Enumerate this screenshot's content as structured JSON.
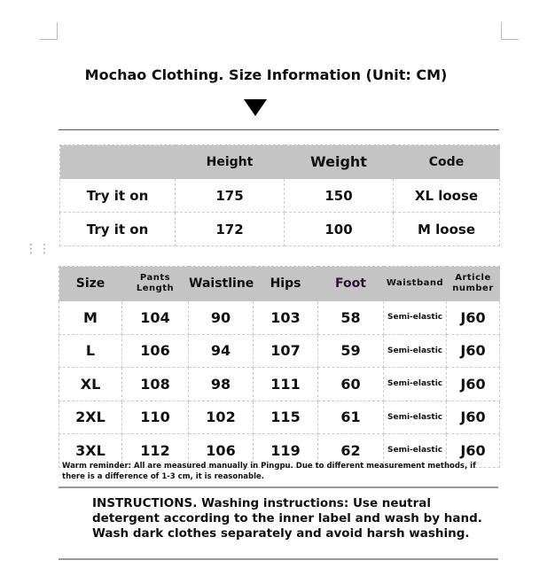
{
  "title": "Mochao Clothing. Size Information (Unit: CM)",
  "tryon": {
    "headers": [
      "",
      "Height",
      "Weight",
      "Code"
    ],
    "rows": [
      [
        "Try it on",
        "175",
        "150",
        "XL loose"
      ],
      [
        "Try it on",
        "172",
        "100",
        "M loose"
      ]
    ]
  },
  "sizes": {
    "headers": [
      "Size",
      "Pants Length",
      "Waistline",
      "Hips",
      "Foot",
      "Waistband",
      "Article number"
    ],
    "rows": [
      [
        "M",
        "104",
        "90",
        "103",
        "58",
        "Semi-elastic",
        "J60"
      ],
      [
        "L",
        "106",
        "94",
        "107",
        "59",
        "Semi-elastic",
        "J60"
      ],
      [
        "XL",
        "108",
        "98",
        "111",
        "60",
        "Semi-elastic",
        "J60"
      ],
      [
        "2XL",
        "110",
        "102",
        "115",
        "61",
        "Semi-elastic",
        "J60"
      ],
      [
        "3XL",
        "112",
        "106",
        "119",
        "62",
        "Semi-elastic",
        "J60"
      ]
    ]
  },
  "note": "Warm reminder: All are measured manually in Pingpu. Due to different measurement methods, if there is a difference of 1-3 cm, it is reasonable.",
  "instructions": "INSTRUCTIONS. Washing instructions: Use neutral detergent according to the inner label and wash by hand. Wash dark clothes separately and avoid harsh washing."
}
